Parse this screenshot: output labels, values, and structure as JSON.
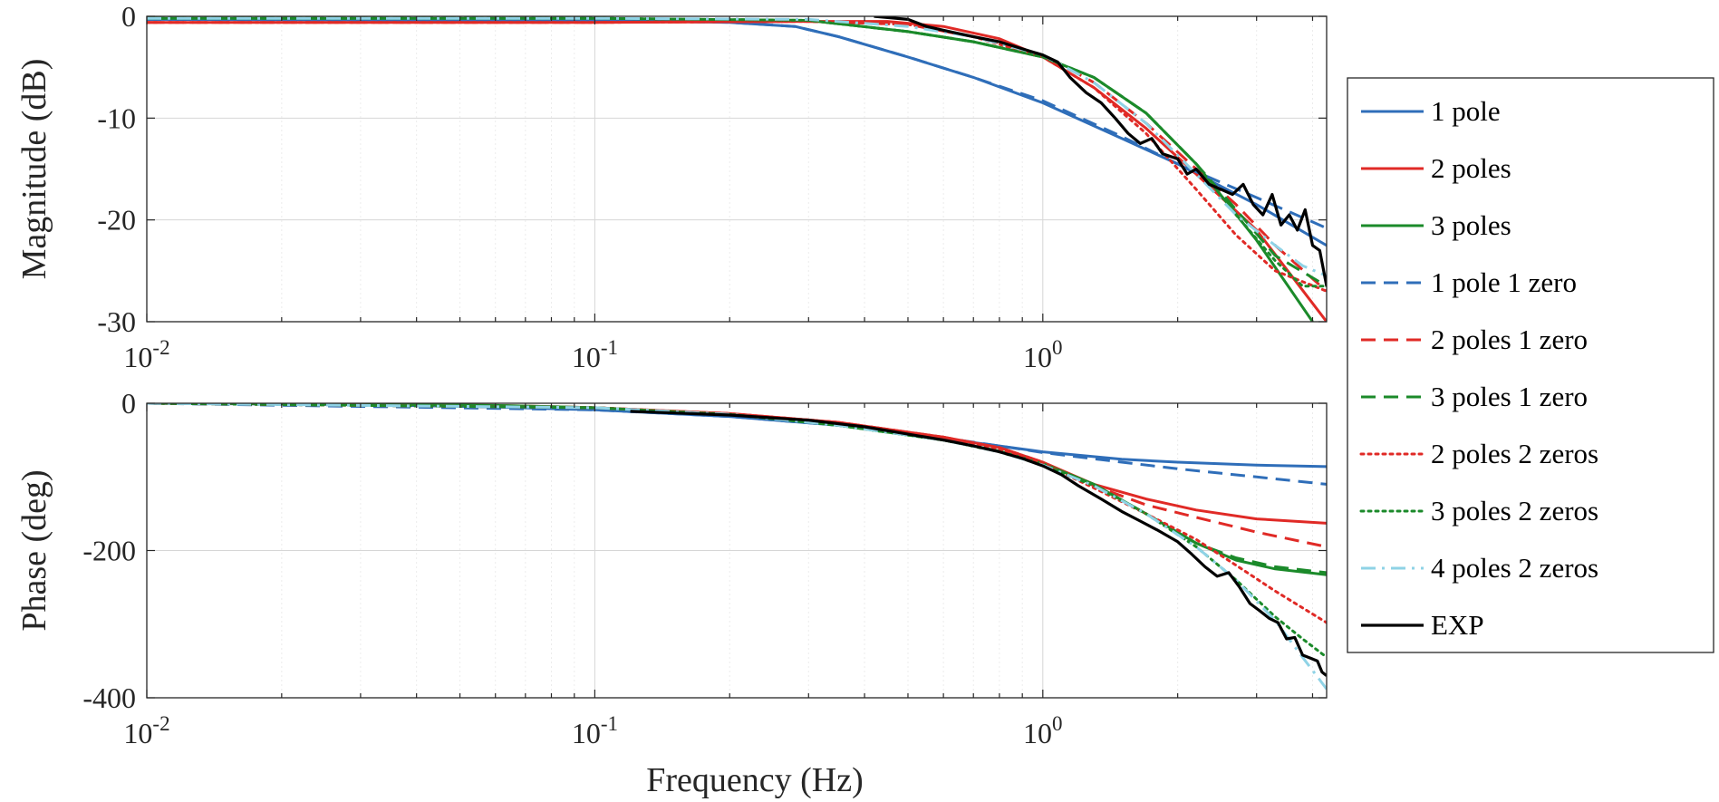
{
  "chart_data": [
    {
      "type": "line",
      "id": "magnitude",
      "ylabel": "Magnitude (dB)",
      "xlabel": "",
      "xscale": "log",
      "xlim": [
        0.01,
        4.3
      ],
      "ylim": [
        -30,
        0
      ],
      "yticks": [
        0,
        -10,
        -20,
        -30
      ],
      "ytick_labels": [
        "0",
        "-10",
        "-20",
        "-30"
      ],
      "xticks": [
        {
          "value": 0.01,
          "base": "10",
          "exp": "-2"
        },
        {
          "value": 0.1,
          "base": "10",
          "exp": "-1"
        },
        {
          "value": 1,
          "base": "10",
          "exp": "0"
        }
      ],
      "grid": true,
      "series": [
        {
          "name": "1 pole",
          "color": "#2f6eb9",
          "style": "solid",
          "x": [
            0.01,
            0.1,
            0.2,
            0.28,
            0.35,
            0.5,
            0.7,
            1.0,
            1.5,
            2.0,
            3.0,
            4.3
          ],
          "y": [
            -0.3,
            -0.4,
            -0.6,
            -1.0,
            -2.0,
            -4.0,
            -6.0,
            -8.5,
            -12.0,
            -14.5,
            -18.5,
            -22.5
          ]
        },
        {
          "name": "2 poles",
          "color": "#e02a26",
          "style": "solid",
          "x": [
            0.01,
            0.1,
            0.3,
            0.45,
            0.6,
            0.8,
            1.0,
            1.3,
            1.7,
            2.2,
            3.0,
            4.3
          ],
          "y": [
            -0.6,
            -0.6,
            -0.5,
            -0.5,
            -1.0,
            -2.2,
            -4.0,
            -7.0,
            -11.0,
            -15.5,
            -21.0,
            -30.0
          ]
        },
        {
          "name": "3 poles",
          "color": "#1b8a2a",
          "style": "solid",
          "x": [
            0.01,
            0.1,
            0.3,
            0.5,
            0.7,
            1.0,
            1.3,
            1.7,
            2.2,
            3.0,
            4.0
          ],
          "y": [
            -0.2,
            -0.2,
            -0.4,
            -1.5,
            -2.5,
            -4.0,
            -6.0,
            -9.5,
            -14.5,
            -22.0,
            -30.0
          ]
        },
        {
          "name": "1 pole 1 zero",
          "color": "#2f6eb9",
          "style": "dash",
          "x": [
            0.01,
            0.1,
            0.2,
            0.28,
            0.35,
            0.5,
            0.7,
            1.0,
            1.5,
            2.0,
            3.0,
            4.3
          ],
          "y": [
            -0.3,
            -0.4,
            -0.6,
            -1.0,
            -2.0,
            -4.0,
            -6.0,
            -8.3,
            -11.8,
            -14.5,
            -17.8,
            -20.8
          ]
        },
        {
          "name": "2 poles 1 zero",
          "color": "#e02a26",
          "style": "dash",
          "x": [
            0.01,
            0.1,
            0.3,
            0.5,
            0.7,
            1.0,
            1.3,
            1.7,
            2.2,
            2.7,
            3.3,
            4.3
          ],
          "y": [
            -0.6,
            -0.6,
            -0.5,
            -0.8,
            -2.0,
            -3.8,
            -6.5,
            -10.5,
            -15.0,
            -18.5,
            -22.5,
            -27.0
          ]
        },
        {
          "name": "3 poles 1 zero",
          "color": "#1b8a2a",
          "style": "dash",
          "x": [
            0.01,
            0.1,
            0.3,
            0.5,
            0.7,
            1.0,
            1.3,
            1.7,
            2.2,
            2.7,
            3.3,
            4.3
          ],
          "y": [
            -0.2,
            -0.2,
            -0.4,
            -1.5,
            -2.5,
            -4.0,
            -6.0,
            -9.5,
            -14.5,
            -19.0,
            -23.5,
            -26.5
          ]
        },
        {
          "name": "2 poles 2 zeros",
          "color": "#e02a26",
          "style": "dot",
          "x": [
            0.01,
            0.1,
            0.3,
            0.5,
            0.7,
            1.0,
            1.3,
            1.7,
            2.2,
            2.7,
            3.3,
            4.3
          ],
          "y": [
            -0.6,
            -0.6,
            -0.5,
            -0.8,
            -2.0,
            -4.0,
            -7.0,
            -11.5,
            -17.0,
            -21.5,
            -25.0,
            -27.0
          ]
        },
        {
          "name": "3 poles 2 zeros",
          "color": "#1b8a2a",
          "style": "dot",
          "x": [
            0.01,
            0.1,
            0.3,
            0.5,
            0.7,
            1.0,
            1.3,
            1.7,
            2.2,
            2.7,
            3.3,
            3.8,
            4.3
          ],
          "y": [
            -0.2,
            -0.2,
            -0.4,
            -1.5,
            -2.5,
            -4.0,
            -6.0,
            -9.5,
            -14.5,
            -19.5,
            -24.0,
            -26.5,
            -26.5
          ]
        },
        {
          "name": "4 poles 2 zeros",
          "color": "#8fd3e6",
          "style": "dashdot",
          "x": [
            0.01,
            0.1,
            0.3,
            0.5,
            0.7,
            1.0,
            1.3,
            1.7,
            2.2,
            2.7,
            3.3,
            3.8,
            4.3
          ],
          "y": [
            -0.2,
            -0.2,
            -0.3,
            -1.0,
            -2.0,
            -3.8,
            -6.5,
            -10.5,
            -15.5,
            -19.5,
            -22.5,
            -24.5,
            -25.5
          ]
        },
        {
          "name": "EXP",
          "color": "#000000",
          "style": "solid",
          "x": [
            0.42,
            0.5,
            0.55,
            0.62,
            0.7,
            0.8,
            0.9,
            1.0,
            1.08,
            1.15,
            1.25,
            1.35,
            1.45,
            1.55,
            1.65,
            1.75,
            1.85,
            2.0,
            2.1,
            2.2,
            2.35,
            2.5,
            2.65,
            2.8,
            2.95,
            3.1,
            3.25,
            3.4,
            3.55,
            3.7,
            3.85,
            4.0,
            4.15,
            4.3
          ],
          "y": [
            0.0,
            -0.3,
            -1.0,
            -1.5,
            -2.0,
            -2.5,
            -3.2,
            -3.8,
            -4.5,
            -6.0,
            -7.5,
            -8.5,
            -10.0,
            -11.5,
            -12.5,
            -12.0,
            -13.5,
            -14.0,
            -15.5,
            -15.0,
            -16.5,
            -17.0,
            -17.5,
            -16.5,
            -18.5,
            -19.5,
            -17.5,
            -20.5,
            -19.5,
            -21.0,
            -19.0,
            -22.5,
            -23.0,
            -26.5
          ]
        }
      ]
    },
    {
      "type": "line",
      "id": "phase",
      "ylabel": "Phase (deg)",
      "xlabel": "Frequency (Hz)",
      "xscale": "log",
      "xlim": [
        0.01,
        4.3
      ],
      "ylim": [
        -400,
        0
      ],
      "yticks": [
        0,
        -200,
        -400
      ],
      "ytick_labels": [
        "0",
        "-200",
        "-400"
      ],
      "xticks": [
        {
          "value": 0.01,
          "base": "10",
          "exp": "-2"
        },
        {
          "value": 0.1,
          "base": "10",
          "exp": "-1"
        },
        {
          "value": 1,
          "base": "10",
          "exp": "0"
        }
      ],
      "grid": true,
      "series": [
        {
          "name": "1 pole",
          "color": "#2f6eb9",
          "style": "solid",
          "x": [
            0.01,
            0.03,
            0.06,
            0.1,
            0.2,
            0.35,
            0.6,
            0.8,
            1.0,
            1.5,
            2.0,
            3.0,
            4.3
          ],
          "y": [
            0,
            -2,
            -5,
            -9,
            -18,
            -30,
            -48,
            -58,
            -66,
            -76,
            -80,
            -84,
            -86
          ]
        },
        {
          "name": "2 poles",
          "color": "#e02a26",
          "style": "solid",
          "x": [
            0.01,
            0.03,
            0.06,
            0.1,
            0.2,
            0.35,
            0.6,
            0.8,
            1.0,
            1.3,
            1.7,
            2.2,
            3.0,
            4.3
          ],
          "y": [
            0,
            -1,
            -3,
            -6,
            -14,
            -26,
            -46,
            -60,
            -80,
            -110,
            -130,
            -145,
            -157,
            -163
          ]
        },
        {
          "name": "3 poles",
          "color": "#1b8a2a",
          "style": "solid",
          "x": [
            0.01,
            0.03,
            0.06,
            0.1,
            0.2,
            0.35,
            0.6,
            0.8,
            1.0,
            1.3,
            1.7,
            2.2,
            2.7,
            3.3,
            4.3
          ],
          "y": [
            0,
            -1,
            -3,
            -6,
            -15,
            -30,
            -50,
            -65,
            -82,
            -110,
            -150,
            -190,
            -213,
            -225,
            -233
          ]
        },
        {
          "name": "1 pole 1 zero",
          "color": "#2f6eb9",
          "style": "dash",
          "x": [
            0.01,
            0.1,
            0.2,
            0.35,
            0.6,
            0.8,
            1.0,
            1.5,
            2.0,
            3.0,
            4.3
          ],
          "y": [
            0,
            -9,
            -18,
            -30,
            -47,
            -58,
            -67,
            -80,
            -89,
            -100,
            -110
          ]
        },
        {
          "name": "2 poles 1 zero",
          "color": "#e02a26",
          "style": "dash",
          "x": [
            0.01,
            0.1,
            0.2,
            0.35,
            0.6,
            0.8,
            1.0,
            1.3,
            1.7,
            2.2,
            3.0,
            4.3
          ],
          "y": [
            0,
            -6,
            -14,
            -26,
            -46,
            -60,
            -80,
            -112,
            -138,
            -155,
            -175,
            -195
          ]
        },
        {
          "name": "3 poles 1 zero",
          "color": "#1b8a2a",
          "style": "dash",
          "x": [
            0.01,
            0.1,
            0.2,
            0.35,
            0.6,
            0.8,
            1.0,
            1.3,
            1.7,
            2.2,
            2.7,
            3.3,
            4.3
          ],
          "y": [
            0,
            -6,
            -15,
            -30,
            -50,
            -65,
            -82,
            -110,
            -150,
            -190,
            -210,
            -222,
            -230
          ]
        },
        {
          "name": "2 poles 2 zeros",
          "color": "#e02a26",
          "style": "dot",
          "x": [
            0.01,
            0.1,
            0.2,
            0.35,
            0.6,
            0.8,
            1.0,
            1.3,
            1.7,
            2.2,
            2.7,
            3.3,
            4.3
          ],
          "y": [
            0,
            -6,
            -14,
            -26,
            -46,
            -62,
            -82,
            -115,
            -150,
            -185,
            -220,
            -255,
            -298
          ]
        },
        {
          "name": "3 poles 2 zeros",
          "color": "#1b8a2a",
          "style": "dot",
          "x": [
            0.01,
            0.1,
            0.2,
            0.35,
            0.6,
            0.8,
            1.0,
            1.3,
            1.7,
            2.2,
            2.7,
            3.3,
            3.8,
            4.3
          ],
          "y": [
            0,
            -6,
            -15,
            -30,
            -50,
            -66,
            -84,
            -112,
            -150,
            -195,
            -240,
            -290,
            -320,
            -345
          ]
        },
        {
          "name": "4 poles 2 zeros",
          "color": "#8fd3e6",
          "style": "dashdot",
          "x": [
            0.01,
            0.1,
            0.2,
            0.35,
            0.6,
            0.8,
            1.0,
            1.3,
            1.7,
            2.2,
            2.7,
            3.3,
            3.8,
            4.3
          ],
          "y": [
            0,
            -6,
            -15,
            -30,
            -50,
            -66,
            -84,
            -112,
            -150,
            -195,
            -240,
            -295,
            -345,
            -388
          ]
        },
        {
          "name": "EXP",
          "color": "#000000",
          "style": "solid",
          "x": [
            0.12,
            0.2,
            0.3,
            0.4,
            0.5,
            0.6,
            0.7,
            0.8,
            0.9,
            1.0,
            1.1,
            1.2,
            1.35,
            1.5,
            1.65,
            1.8,
            2.0,
            2.15,
            2.3,
            2.45,
            2.6,
            2.75,
            2.9,
            3.05,
            3.2,
            3.35,
            3.5,
            3.65,
            3.8,
            3.95,
            4.1,
            4.2,
            4.3
          ],
          "y": [
            -11,
            -16,
            -23,
            -32,
            -42,
            -50,
            -58,
            -66,
            -75,
            -85,
            -97,
            -112,
            -130,
            -147,
            -160,
            -172,
            -188,
            -205,
            -222,
            -235,
            -230,
            -250,
            -272,
            -282,
            -292,
            -298,
            -320,
            -318,
            -342,
            -346,
            -350,
            -365,
            -370
          ]
        }
      ]
    }
  ],
  "legend": {
    "placement": "right",
    "entries": [
      "1 pole",
      "2 poles",
      "3 poles",
      "1 pole 1 zero",
      "2 poles 1 zero",
      "3 poles 1 zero",
      "2 poles 2 zeros",
      "3 poles 2 zeros",
      "4 poles 2 zeros",
      "EXP"
    ]
  }
}
